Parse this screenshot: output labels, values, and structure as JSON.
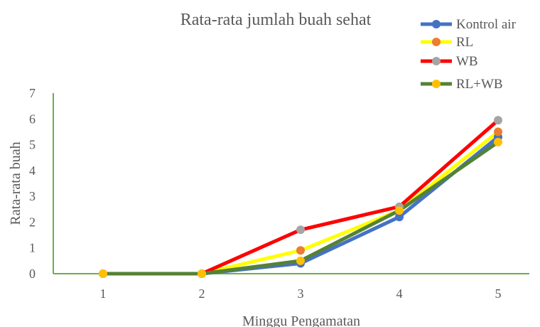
{
  "chart_data": {
    "type": "line",
    "title": "Rata-rata jumlah buah sehat",
    "xlabel": "Minggu Pengamatan",
    "ylabel": "Rata-rata buah",
    "categories": [
      "1",
      "2",
      "3",
      "4",
      "5"
    ],
    "ylim": [
      0,
      7
    ],
    "yticks": [
      "0",
      "1",
      "2",
      "3",
      "4",
      "5",
      "6",
      "7"
    ],
    "grid": false,
    "legend_position": "top-right",
    "axis_color": "#70AD47",
    "series": [
      {
        "name": "Kontrol air",
        "values": [
          0,
          0,
          0.4,
          2.2,
          5.3
        ],
        "line_color": "#4472C4",
        "marker_color": "#4472C4"
      },
      {
        "name": "RL",
        "values": [
          0,
          0,
          0.9,
          2.45,
          5.5
        ],
        "line_color": "#FFFF00",
        "marker_color": "#ED7D31"
      },
      {
        "name": "WB",
        "values": [
          0,
          0,
          1.7,
          2.6,
          5.95
        ],
        "line_color": "#FF0000",
        "marker_color": "#A5A5A5"
      },
      {
        "name": "RL+WB",
        "values": [
          0,
          0,
          0.5,
          2.45,
          5.1
        ],
        "line_color": "#548235",
        "marker_color": "#FFC000"
      }
    ]
  }
}
